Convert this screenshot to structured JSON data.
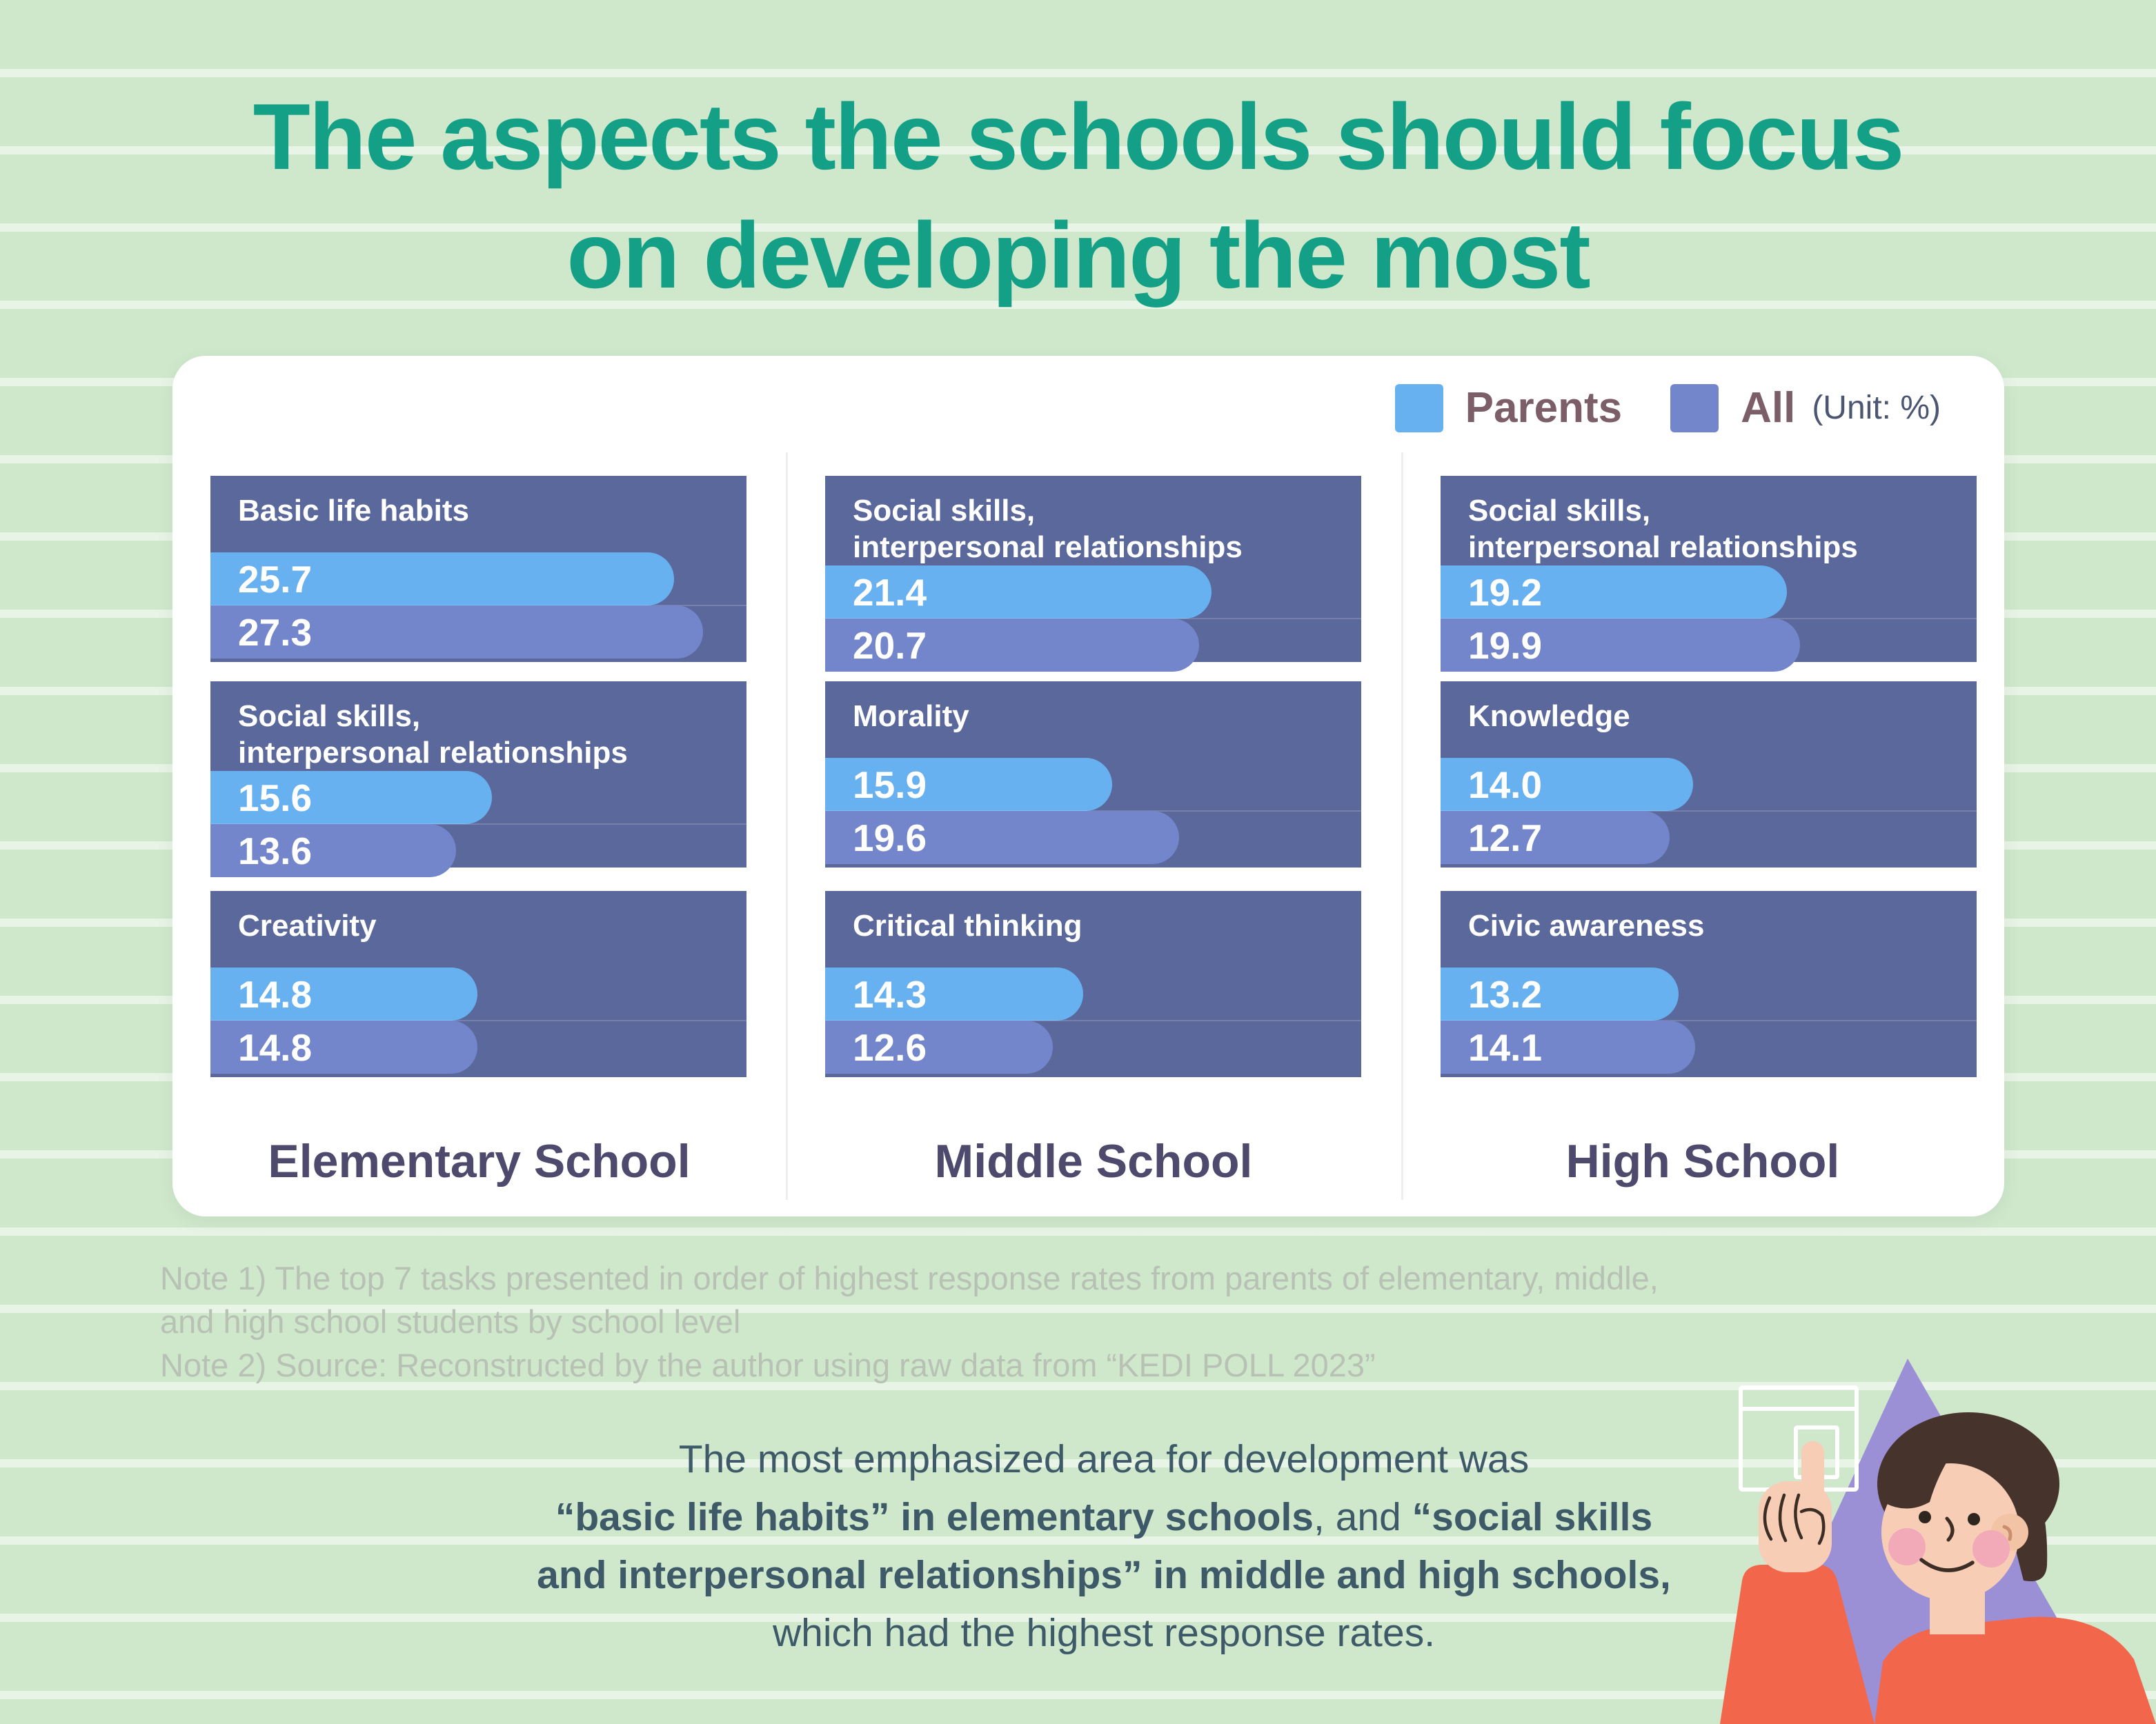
{
  "title": {
    "line1": "The aspects the schools should focus",
    "line2": "on developing the most"
  },
  "legend": {
    "parents_label": "Parents",
    "all_label": "All",
    "unit": "(Unit: %)"
  },
  "chart_data": {
    "type": "bar",
    "orientation": "horizontal",
    "unit": "%",
    "scale_max": 29.7,
    "legend_position": "top-right",
    "legend": [
      {
        "name": "Parents",
        "color": "#68b1f0"
      },
      {
        "name": "All",
        "color": "#7386cb"
      }
    ],
    "columns": [
      {
        "school": "Elementary School",
        "panels": [
          {
            "label": "Basic life habits",
            "parents": {
              "v": 25.7,
              "d": "25.7"
            },
            "all": {
              "v": 27.3,
              "d": "27.3"
            }
          },
          {
            "label": "Social skills,\ninterpersonal relationships",
            "parents": {
              "v": 15.6,
              "d": "15.6"
            },
            "all": {
              "v": 13.6,
              "d": "13.6"
            }
          },
          {
            "label": "Creativity",
            "parents": {
              "v": 14.8,
              "d": "14.8"
            },
            "all": {
              "v": 14.8,
              "d": "14.8"
            }
          }
        ]
      },
      {
        "school": "Middle School",
        "panels": [
          {
            "label": "Social skills,\ninterpersonal relationships",
            "parents": {
              "v": 21.4,
              "d": "21.4"
            },
            "all": {
              "v": 20.7,
              "d": "20.7"
            }
          },
          {
            "label": "Morality",
            "parents": {
              "v": 15.9,
              "d": "15.9"
            },
            "all": {
              "v": 19.6,
              "d": "19.6"
            }
          },
          {
            "label": "Critical thinking",
            "parents": {
              "v": 14.3,
              "d": "14.3"
            },
            "all": {
              "v": 12.6,
              "d": "12.6"
            }
          }
        ]
      },
      {
        "school": "High School",
        "panels": [
          {
            "label": "Social skills,\ninterpersonal relationships",
            "parents": {
              "v": 19.2,
              "d": "19.2"
            },
            "all": {
              "v": 19.9,
              "d": "19.9"
            }
          },
          {
            "label": "Knowledge",
            "parents": {
              "v": 14.0,
              "d": "14.0"
            },
            "all": {
              "v": 12.7,
              "d": "12.7"
            }
          },
          {
            "label": "Civic awareness",
            "parents": {
              "v": 13.2,
              "d": "13.2"
            },
            "all": {
              "v": 14.1,
              "d": "14.1"
            }
          }
        ]
      }
    ]
  },
  "notes": {
    "note1_line1": "Note 1) The top 7 tasks presented in order of highest response rates from parents of elementary, middle,",
    "note1_line2": "and high school students by school level",
    "note2": "Note 2) Source: Reconstructed by the author using raw data from “KEDI POLL 2023”"
  },
  "summary": {
    "lines": [
      [
        {
          "t": "The most emphasized area for development was",
          "b": false
        }
      ],
      [
        {
          "t": "“basic life habits” in elementary schools",
          "b": true
        },
        {
          "t": ", and ",
          "b": false
        },
        {
          "t": "“social skills",
          "b": true
        }
      ],
      [
        {
          "t": "and interpersonal relationships” in middle and high schools,",
          "b": true
        }
      ],
      [
        {
          "t": "which had the highest response rates.",
          "b": false
        }
      ]
    ]
  },
  "colors": {
    "background": "#cfe8cc",
    "title_teal": "#13a086",
    "card": "#ffffff",
    "panel": "#5b689b",
    "parents_bar": "#68b1f0",
    "all_bar": "#7386cb",
    "legend_label": "#7b5e68",
    "unit_text": "#4b5671",
    "school_title": "#4e4a6d",
    "notes_text": "#b7c2b4",
    "summary_text": "#3e5a69",
    "illustration_purple": "#9b90d6",
    "illustration_shirt": "#f2664c",
    "illustration_skin": "#f7cdb5",
    "illustration_hair": "#46332c"
  }
}
